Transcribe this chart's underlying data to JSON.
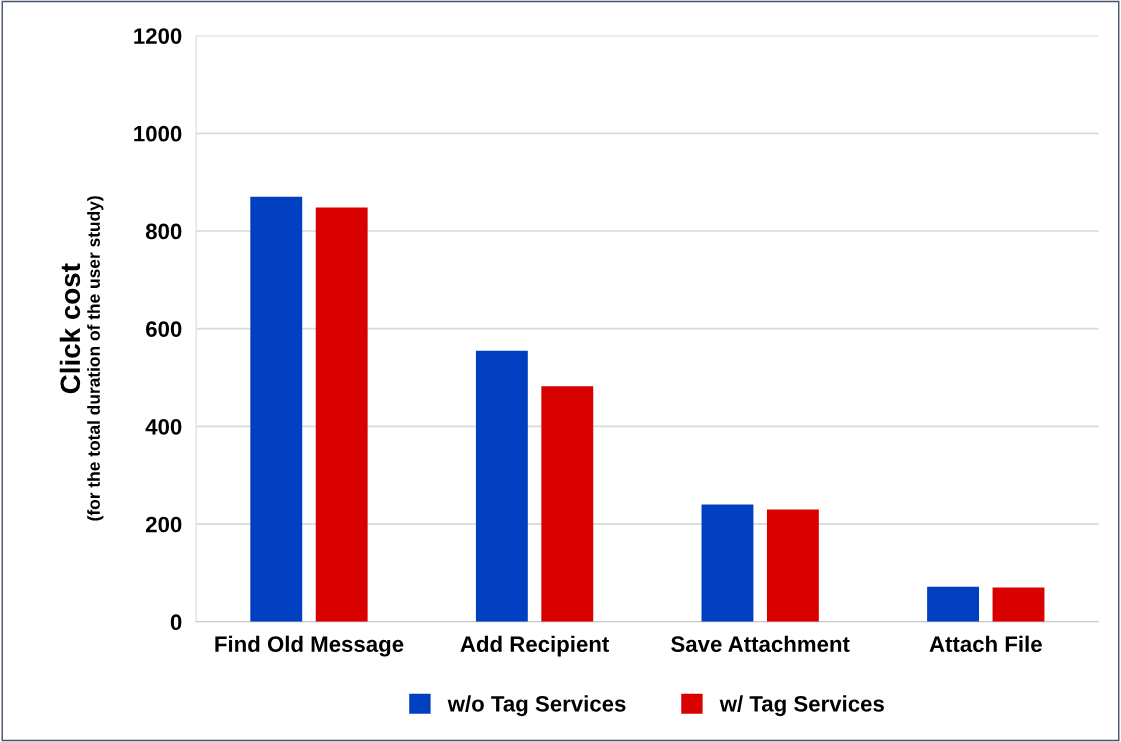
{
  "chart_data": {
    "type": "bar",
    "ylabel": "Click cost",
    "annotations": [
      "(for the total duration of the user study)"
    ],
    "categories": [
      "Find Old Message",
      "Add Recipient",
      "Save Attachment",
      "Attach File"
    ],
    "series": [
      {
        "name": "w/o Tag Services",
        "color": "#0040c0",
        "values": [
          870,
          555,
          240,
          72
        ]
      },
      {
        "name": "w/ Tag Services",
        "color": "#d90000",
        "values": [
          848,
          482,
          230,
          70
        ]
      }
    ],
    "ylim": [
      0,
      1200
    ],
    "yticks": [
      0,
      200,
      400,
      600,
      800,
      1000,
      1200
    ],
    "grid": "y",
    "legend": "bottom"
  }
}
